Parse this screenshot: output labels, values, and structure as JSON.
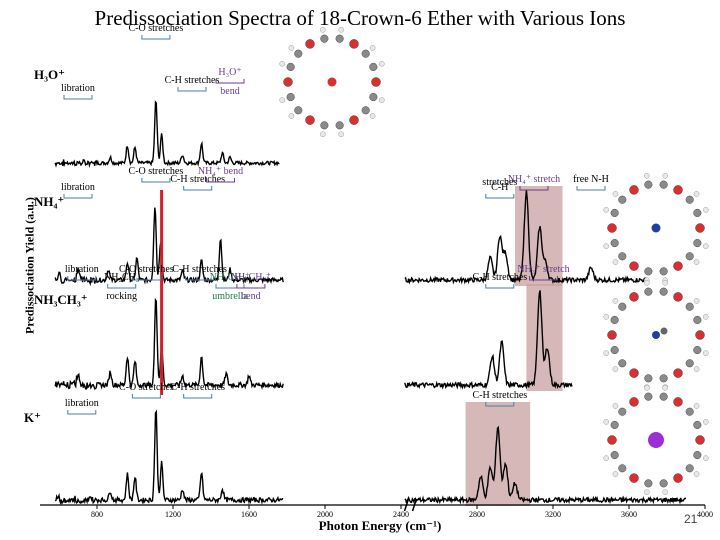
{
  "title": "Predissociation Spectra of 18-Crown-6 Ether with Various Ions",
  "page_number": "21",
  "colors": {
    "trace": "#000000",
    "highlight": "#c9a0a0",
    "red_line": "#d42020",
    "bracket_blue": "#4a7fa8",
    "purple": "#6a3d8f"
  },
  "molecule_icons": [
    "crown-ether-h3o-icon",
    "crown-ether-nh4-icon",
    "crown-ether-ch3nh3-icon",
    "crown-ether-k-icon"
  ],
  "chart_data": {
    "type": "line",
    "title": "Predissociation Spectra of 18-Crown-6 Ether with Various Ions",
    "xlabel": "Photon Energy (cm⁻¹)",
    "ylabel": "Predissociation Yield (a.u.)",
    "xlim": [
      500,
      4000
    ],
    "x_ticks": [
      800,
      1200,
      1600,
      2000,
      2400,
      2800,
      3200,
      3600,
      4000
    ],
    "axis_breaks": [
      2450
    ],
    "series": [
      {
        "name": "H₃O⁺",
        "ion_label": "H₃O⁺",
        "peaks": [
          [
            870,
            0.08
          ],
          [
            960,
            0.25
          ],
          [
            1000,
            0.22
          ],
          [
            1110,
            0.9
          ],
          [
            1140,
            0.4
          ],
          [
            1250,
            0.12
          ],
          [
            1350,
            0.28
          ],
          [
            1460,
            0.14
          ],
          [
            1500,
            0.08
          ]
        ],
        "x_range": [
          580,
          1760
        ],
        "annotations": [
          {
            "text": "C-O stretches",
            "x": 1110,
            "kind": "text"
          },
          {
            "text": "C-H stretches",
            "x": 1300,
            "kind": "text"
          },
          {
            "text": "libration",
            "x": 700,
            "kind": "text"
          },
          {
            "text": "H₃O⁺",
            "x": 1500,
            "kind": "purple"
          },
          {
            "text": "bend",
            "x": 1500,
            "kind": "purple"
          }
        ]
      },
      {
        "name": "NH₄⁺",
        "ion_label": "NH₄⁺",
        "peaks": [
          [
            600,
            0.1
          ],
          [
            700,
            0.14
          ],
          [
            860,
            0.12
          ],
          [
            960,
            0.2
          ],
          [
            1010,
            0.25
          ],
          [
            1105,
            0.85
          ],
          [
            1135,
            0.45
          ],
          [
            1250,
            0.1
          ],
          [
            1350,
            0.22
          ],
          [
            1450,
            0.48
          ],
          [
            1500,
            0.12
          ],
          [
            2870,
            0.25
          ],
          [
            2920,
            0.5
          ],
          [
            2950,
            0.3
          ],
          [
            3060,
            1.0
          ],
          [
            3130,
            0.6
          ],
          [
            3160,
            0.2
          ],
          [
            3400,
            0.14
          ]
        ],
        "x_range": [
          580,
          3700
        ],
        "annotations": [
          {
            "text": "C-O stretches",
            "x": 1110,
            "kind": "text"
          },
          {
            "text": "C-H stretches",
            "x": 1330,
            "kind": "text"
          },
          {
            "text": "libration",
            "x": 700,
            "kind": "text"
          },
          {
            "text": "NH₄⁺ bend",
            "x": 1450,
            "kind": "purple"
          },
          {
            "text": "NH₄⁺ stretch",
            "x": 3100,
            "kind": "purple"
          },
          {
            "text": "C-H",
            "x": 2920,
            "kind": "text"
          },
          {
            "text": "stretches",
            "x": 2920,
            "kind": "text"
          },
          {
            "text": "free N-H",
            "x": 3400,
            "kind": "text"
          }
        ]
      },
      {
        "name": "NH₃CH₃⁺",
        "ion_label": "NH₃CH₃⁺",
        "peaks": [
          [
            700,
            0.12
          ],
          [
            870,
            0.14
          ],
          [
            960,
            0.3
          ],
          [
            1000,
            0.25
          ],
          [
            1110,
            0.95
          ],
          [
            1140,
            0.4
          ],
          [
            1250,
            0.1
          ],
          [
            1350,
            0.3
          ],
          [
            1480,
            0.12
          ],
          [
            1600,
            0.1
          ],
          [
            2880,
            0.3
          ],
          [
            2930,
            0.45
          ],
          [
            3130,
            1.0
          ],
          [
            3170,
            0.4
          ]
        ],
        "x_range": [
          580,
          3300
        ],
        "annotations": [
          {
            "text": "C-O stretches",
            "x": 1060,
            "kind": "text"
          },
          {
            "text": "NH₂CH₃",
            "x": 930,
            "kind": "text"
          },
          {
            "text": "rocking",
            "x": 930,
            "kind": "text"
          },
          {
            "text": "libration",
            "x": 720,
            "kind": "text"
          },
          {
            "text": "NH₃CH₃⁺",
            "x": 1500,
            "kind": "green"
          },
          {
            "text": "umbrella",
            "x": 1500,
            "kind": "green"
          },
          {
            "text": "C-H stretches",
            "x": 1340,
            "kind": "text"
          },
          {
            "text": "NH₃CH₃⁺",
            "x": 1610,
            "kind": "purple"
          },
          {
            "text": "bend",
            "x": 1610,
            "kind": "purple"
          },
          {
            "text": "NH₃⁺ stretch",
            "x": 3150,
            "kind": "purple"
          },
          {
            "text": "C-H stretches",
            "x": 2920,
            "kind": "text"
          }
        ]
      },
      {
        "name": "K⁺",
        "ion_label": "K⁺",
        "peaks": [
          [
            870,
            0.1
          ],
          [
            960,
            0.28
          ],
          [
            1000,
            0.25
          ],
          [
            1110,
            1.0
          ],
          [
            1140,
            0.4
          ],
          [
            1250,
            0.12
          ],
          [
            1350,
            0.3
          ],
          [
            1460,
            0.12
          ],
          [
            2820,
            0.25
          ],
          [
            2870,
            0.35
          ],
          [
            2910,
            0.8
          ],
          [
            2950,
            0.4
          ],
          [
            3000,
            0.18
          ]
        ],
        "x_range": [
          580,
          3900
        ],
        "annotations": [
          {
            "text": "C-O stretches",
            "x": 1060,
            "kind": "text"
          },
          {
            "text": "C-H stretches",
            "x": 2920,
            "kind": "text"
          },
          {
            "text": "libration",
            "x": 720,
            "kind": "text"
          },
          {
            "text": "C-H stretches",
            "x": 1330,
            "kind": "text"
          }
        ]
      }
    ],
    "shaded_regions": [
      {
        "series": "NH₄⁺",
        "x": [
          3000,
          3250
        ]
      },
      {
        "series": "NH₃CH₃⁺",
        "x": [
          3060,
          3250
        ]
      },
      {
        "series": "K⁺",
        "x": [
          2740,
          3080
        ]
      }
    ],
    "reference_line": {
      "x": 1140,
      "color": "#d42020"
    }
  }
}
